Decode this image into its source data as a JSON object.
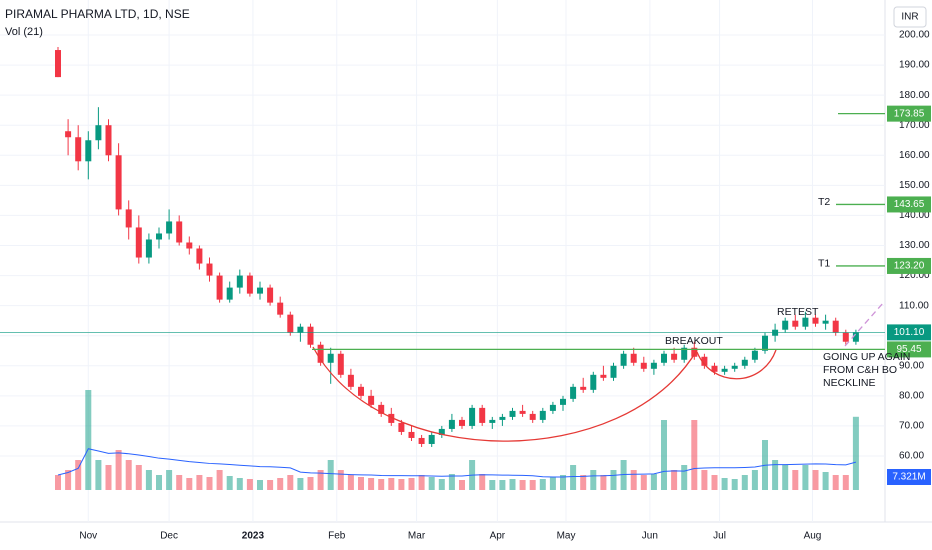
{
  "header": {
    "title": "PIRAMAL PHARMA LTD, 1D, NSE",
    "indicator": "Vol (21)",
    "currency": "INR"
  },
  "chart_data": {
    "type": "candlestick",
    "up_color": "#089981",
    "down_color": "#f23645",
    "ylim": [
      60,
      200
    ],
    "yticks": [
      {
        "value": 60,
        "label": "60.00"
      },
      {
        "value": 70,
        "label": "70.00"
      },
      {
        "value": 80,
        "label": "80.00"
      },
      {
        "value": 90,
        "label": "90.00"
      },
      {
        "value": 100,
        "label": "100.00"
      },
      {
        "value": 110,
        "label": "110.00"
      },
      {
        "value": 120,
        "label": "120.00"
      },
      {
        "value": 130,
        "label": "130.00"
      },
      {
        "value": 140,
        "label": "140.00"
      },
      {
        "value": 150,
        "label": "150.00"
      },
      {
        "value": 160,
        "label": "160.00"
      },
      {
        "value": 170,
        "label": "170.00"
      },
      {
        "value": 180,
        "label": "180.00"
      },
      {
        "value": 190,
        "label": "190.00"
      },
      {
        "value": 200,
        "label": "200.00"
      }
    ],
    "xticks": [
      {
        "value": 3,
        "label": "Nov"
      },
      {
        "value": 11,
        "label": "Dec"
      },
      {
        "value": 19.3,
        "label": "2023"
      },
      {
        "value": 27.6,
        "label": "Feb"
      },
      {
        "value": 35.5,
        "label": "Mar"
      },
      {
        "value": 43.5,
        "label": "Apr"
      },
      {
        "value": 50.3,
        "label": "May"
      },
      {
        "value": 58.6,
        "label": "Jun"
      },
      {
        "value": 65.5,
        "label": "Jul"
      },
      {
        "value": 74.7,
        "label": "Aug"
      }
    ],
    "grid": true,
    "candles": [
      [
        195,
        196,
        186,
        186
      ],
      [
        168,
        172,
        160,
        166
      ],
      [
        166,
        170,
        155,
        158
      ],
      [
        158,
        168,
        152,
        165
      ],
      [
        165,
        176,
        162,
        170
      ],
      [
        170,
        172,
        158,
        160
      ],
      [
        160,
        164,
        140,
        142
      ],
      [
        142,
        145,
        132,
        136
      ],
      [
        136,
        140,
        124,
        126
      ],
      [
        126,
        134,
        124,
        132
      ],
      [
        132,
        136,
        129,
        134
      ],
      [
        134,
        142,
        132,
        138
      ],
      [
        138,
        140,
        130,
        131
      ],
      [
        131,
        133,
        127,
        129
      ],
      [
        129,
        130,
        122,
        124
      ],
      [
        124,
        126,
        118,
        120
      ],
      [
        120,
        121,
        111,
        112
      ],
      [
        112,
        118,
        111,
        116
      ],
      [
        116,
        122,
        114,
        120
      ],
      [
        120,
        121,
        113,
        114
      ],
      [
        114,
        118,
        112,
        116
      ],
      [
        116,
        117,
        110,
        111
      ],
      [
        111,
        113,
        106,
        107
      ],
      [
        107,
        108,
        100,
        101
      ],
      [
        101,
        104,
        98,
        103
      ],
      [
        103,
        104,
        96,
        97
      ],
      [
        97,
        98,
        90,
        91
      ],
      [
        91,
        96,
        84,
        94
      ],
      [
        94,
        95,
        86,
        87
      ],
      [
        87,
        89,
        82,
        83
      ],
      [
        83,
        84,
        79,
        80
      ],
      [
        80,
        82,
        76,
        77
      ],
      [
        77,
        78,
        73,
        74
      ],
      [
        74,
        76,
        70,
        71
      ],
      [
        71,
        72,
        67,
        68
      ],
      [
        68,
        70,
        65,
        66
      ],
      [
        66,
        67,
        63,
        64
      ],
      [
        64,
        68,
        63,
        67
      ],
      [
        67,
        70,
        66,
        69
      ],
      [
        69,
        74,
        68,
        72
      ],
      [
        72,
        73,
        69,
        70
      ],
      [
        70,
        77,
        69,
        76
      ],
      [
        76,
        77,
        70,
        71
      ],
      [
        71,
        73,
        69,
        72
      ],
      [
        72,
        74,
        70,
        73
      ],
      [
        73,
        76,
        72,
        75
      ],
      [
        75,
        77,
        73,
        74
      ],
      [
        74,
        75,
        71,
        72
      ],
      [
        72,
        76,
        71,
        75
      ],
      [
        75,
        78,
        74,
        77
      ],
      [
        77,
        80,
        75,
        79
      ],
      [
        79,
        84,
        78,
        83
      ],
      [
        83,
        86,
        81,
        82
      ],
      [
        82,
        88,
        81,
        87
      ],
      [
        87,
        90,
        85,
        86
      ],
      [
        86,
        91,
        85,
        90
      ],
      [
        90,
        95,
        89,
        94
      ],
      [
        94,
        96,
        90,
        91
      ],
      [
        91,
        93,
        88,
        89
      ],
      [
        89,
        92,
        87,
        91
      ],
      [
        91,
        95,
        90,
        94
      ],
      [
        94,
        96,
        91,
        92
      ],
      [
        92,
        97,
        91,
        96
      ],
      [
        96,
        98,
        92,
        93
      ],
      [
        93,
        94,
        89,
        90
      ],
      [
        90,
        91,
        87,
        88
      ],
      [
        88,
        90,
        87,
        89
      ],
      [
        89,
        91,
        88,
        90
      ],
      [
        90,
        93,
        89,
        92
      ],
      [
        92,
        96,
        91,
        95
      ],
      [
        95,
        101,
        94,
        100
      ],
      [
        100,
        104,
        98,
        102
      ],
      [
        102,
        106,
        101,
        105
      ],
      [
        105,
        107,
        102,
        103
      ],
      [
        103,
        108,
        102,
        106
      ],
      [
        106,
        107,
        103,
        104
      ],
      [
        104,
        107,
        102,
        105
      ],
      [
        105,
        106,
        100,
        101
      ],
      [
        101,
        102,
        97,
        98
      ],
      [
        98,
        102,
        97,
        101.1
      ]
    ],
    "volume": [
      1.5,
      2,
      3,
      10,
      3,
      2.5,
      4,
      3,
      2.5,
      2,
      1.5,
      2,
      1.5,
      1.2,
      1.5,
      1.3,
      2,
      1.4,
      1.2,
      1.1,
      1,
      1,
      1.2,
      1.5,
      1.2,
      1.3,
      2,
      3,
      2,
      1.5,
      1.3,
      1.2,
      1.1,
      1.2,
      1.1,
      1.2,
      1.5,
      1.3,
      1.1,
      1.6,
      1,
      3,
      1.6,
      1,
      1,
      1.1,
      1,
      1,
      1.1,
      1.3,
      1.5,
      2.5,
      1.5,
      2,
      1.5,
      2,
      3,
      2,
      1.5,
      1.6,
      7,
      2,
      2.5,
      7,
      2,
      1.5,
      1.2,
      1.1,
      1.5,
      2,
      5,
      3,
      2.5,
      2,
      2.5,
      2,
      1.8,
      1.5,
      1.5,
      7.321
    ],
    "volume_label": "7.321M",
    "levels": [
      {
        "price": 173.85,
        "label": "173.85",
        "color": "#4caf50"
      },
      {
        "price": 143.65,
        "label": "143.65",
        "name": "T2",
        "color": "#4caf50"
      },
      {
        "price": 123.2,
        "label": "123.20",
        "name": "T1",
        "color": "#4caf50"
      },
      {
        "price": 101.1,
        "label": "101.10",
        "color": "#089981"
      },
      {
        "price": 95.45,
        "label": "95.45",
        "color": "#4caf50"
      }
    ],
    "annotations": {
      "breakout": "BREAKOUT",
      "retest": "RETEST",
      "note": [
        "GOING UP AGAIN",
        "FROM C&H BO",
        "NECKLINE"
      ]
    }
  }
}
